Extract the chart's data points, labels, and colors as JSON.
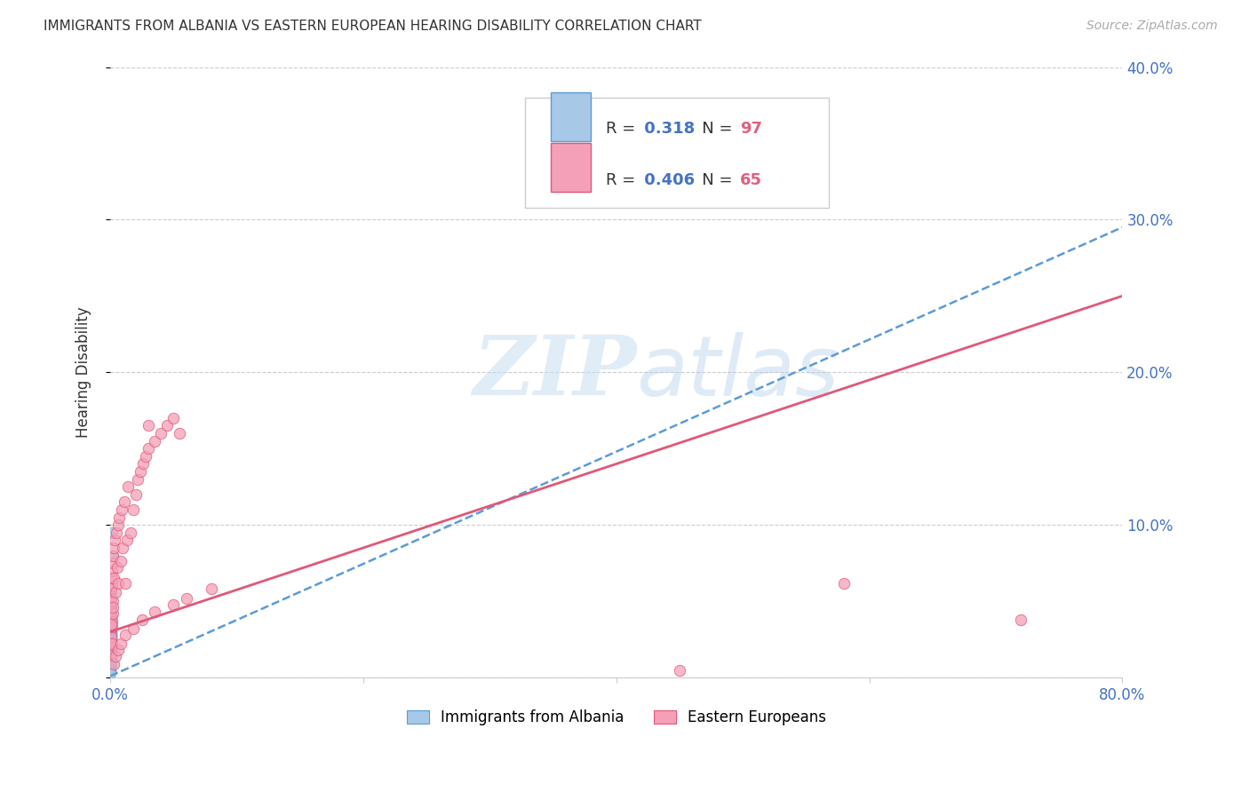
{
  "title": "IMMIGRANTS FROM ALBANIA VS EASTERN EUROPEAN HEARING DISABILITY CORRELATION CHART",
  "source": "Source: ZipAtlas.com",
  "ylabel": "Hearing Disability",
  "xlim": [
    0,
    0.8
  ],
  "ylim": [
    0,
    0.4
  ],
  "albania_color": "#a8c8e8",
  "albania_edge_color": "#5b9bd5",
  "eastern_color": "#f4a0b8",
  "eastern_edge_color": "#e05878",
  "albania_R": 0.318,
  "albania_N": 97,
  "eastern_R": 0.406,
  "eastern_N": 65,
  "background_color": "#ffffff",
  "albania_scatter_x": [
    0.0002,
    0.0003,
    0.0005,
    0.0002,
    0.0004,
    0.0003,
    0.0002,
    0.0004,
    0.0006,
    0.0002,
    0.0003,
    0.0005,
    0.0002,
    0.0004,
    0.0003,
    0.0002,
    0.0007,
    0.0003,
    0.0004,
    0.0002,
    0.0005,
    0.0003,
    0.0006,
    0.0002,
    0.0004,
    0.0003,
    0.0002,
    0.0005,
    0.0003,
    0.0002,
    0.0006,
    0.0004,
    0.0002,
    0.0003,
    0.0005,
    0.0002,
    0.0004,
    0.0003,
    0.0002,
    0.0005,
    0.0003,
    0.0002,
    0.0004,
    0.0006,
    0.0002,
    0.0003,
    0.0004,
    0.0002,
    0.0003,
    0.0002,
    0.0004,
    0.0003,
    0.0002,
    0.0005,
    0.0003,
    0.0002,
    0.0004,
    0.0003,
    0.0002,
    0.0004,
    0.0003,
    0.0002,
    0.0005,
    0.0003,
    0.0002,
    0.0004,
    0.0003,
    0.0002,
    0.0003,
    0.0002,
    0.0004,
    0.0002,
    0.0003,
    0.0002,
    0.0004,
    0.0002,
    0.0003,
    0.0002,
    0.0003,
    0.0002,
    0.0004,
    0.0003,
    0.0002,
    0.0003,
    0.0002,
    0.0004,
    0.0002,
    0.0003,
    0.0002,
    0.0003,
    0.0002,
    0.0004,
    0.0015,
    0.002,
    0.0002,
    0.0003,
    0.0002
  ],
  "albania_scatter_y": [
    0.018,
    0.025,
    0.022,
    0.013,
    0.03,
    0.015,
    0.02,
    0.024,
    0.028,
    0.009,
    0.035,
    0.04,
    0.01,
    0.032,
    0.017,
    0.014,
    0.045,
    0.02,
    0.028,
    0.007,
    0.038,
    0.016,
    0.048,
    0.012,
    0.023,
    0.018,
    0.013,
    0.042,
    0.021,
    0.009,
    0.052,
    0.031,
    0.011,
    0.022,
    0.038,
    0.008,
    0.027,
    0.019,
    0.016,
    0.04,
    0.022,
    0.013,
    0.03,
    0.056,
    0.01,
    0.024,
    0.035,
    0.009,
    0.026,
    0.014,
    0.046,
    0.017,
    0.012,
    0.033,
    0.019,
    0.015,
    0.04,
    0.022,
    0.011,
    0.028,
    0.024,
    0.016,
    0.037,
    0.02,
    0.013,
    0.029,
    0.017,
    0.01,
    0.023,
    0.009,
    0.031,
    0.007,
    0.021,
    0.014,
    0.039,
    0.01,
    0.026,
    0.017,
    0.033,
    0.012,
    0.043,
    0.019,
    0.008,
    0.025,
    0.011,
    0.03,
    0.006,
    0.018,
    0.013,
    0.022,
    0.005,
    0.014,
    0.095,
    0.08,
    0.004,
    0.01,
    0.003
  ],
  "eastern_scatter_x": [
    0.0003,
    0.0004,
    0.0006,
    0.0004,
    0.0006,
    0.0007,
    0.0008,
    0.0008,
    0.0009,
    0.001,
    0.0011,
    0.0012,
    0.0013,
    0.0015,
    0.0016,
    0.0017,
    0.0018,
    0.002,
    0.0021,
    0.0022,
    0.0025,
    0.003,
    0.0035,
    0.004,
    0.005,
    0.0055,
    0.006,
    0.0065,
    0.007,
    0.008,
    0.009,
    0.01,
    0.011,
    0.012,
    0.013,
    0.014,
    0.016,
    0.018,
    0.02,
    0.022,
    0.024,
    0.026,
    0.028,
    0.03,
    0.035,
    0.04,
    0.045,
    0.05,
    0.055,
    0.03,
    0.003,
    0.004,
    0.006,
    0.008,
    0.012,
    0.018,
    0.025,
    0.035,
    0.05,
    0.06,
    0.08,
    0.58,
    0.72,
    0.45,
    0.0003
  ],
  "eastern_scatter_y": [
    0.02,
    0.032,
    0.045,
    0.014,
    0.052,
    0.022,
    0.04,
    0.027,
    0.058,
    0.037,
    0.06,
    0.033,
    0.065,
    0.022,
    0.07,
    0.042,
    0.075,
    0.05,
    0.08,
    0.046,
    0.085,
    0.065,
    0.09,
    0.056,
    0.095,
    0.072,
    0.1,
    0.062,
    0.105,
    0.076,
    0.11,
    0.085,
    0.115,
    0.062,
    0.09,
    0.125,
    0.095,
    0.11,
    0.12,
    0.13,
    0.135,
    0.14,
    0.145,
    0.15,
    0.155,
    0.16,
    0.165,
    0.17,
    0.16,
    0.165,
    0.009,
    0.014,
    0.018,
    0.022,
    0.028,
    0.032,
    0.038,
    0.043,
    0.048,
    0.052,
    0.058,
    0.062,
    0.038,
    0.005,
    0.035
  ],
  "albania_trendline": [
    0.0,
    0.8,
    0.001,
    0.295
  ],
  "eastern_trendline": [
    0.0,
    0.8,
    0.03,
    0.25
  ],
  "watermark_zip": "ZIP",
  "watermark_atlas": "atlas"
}
